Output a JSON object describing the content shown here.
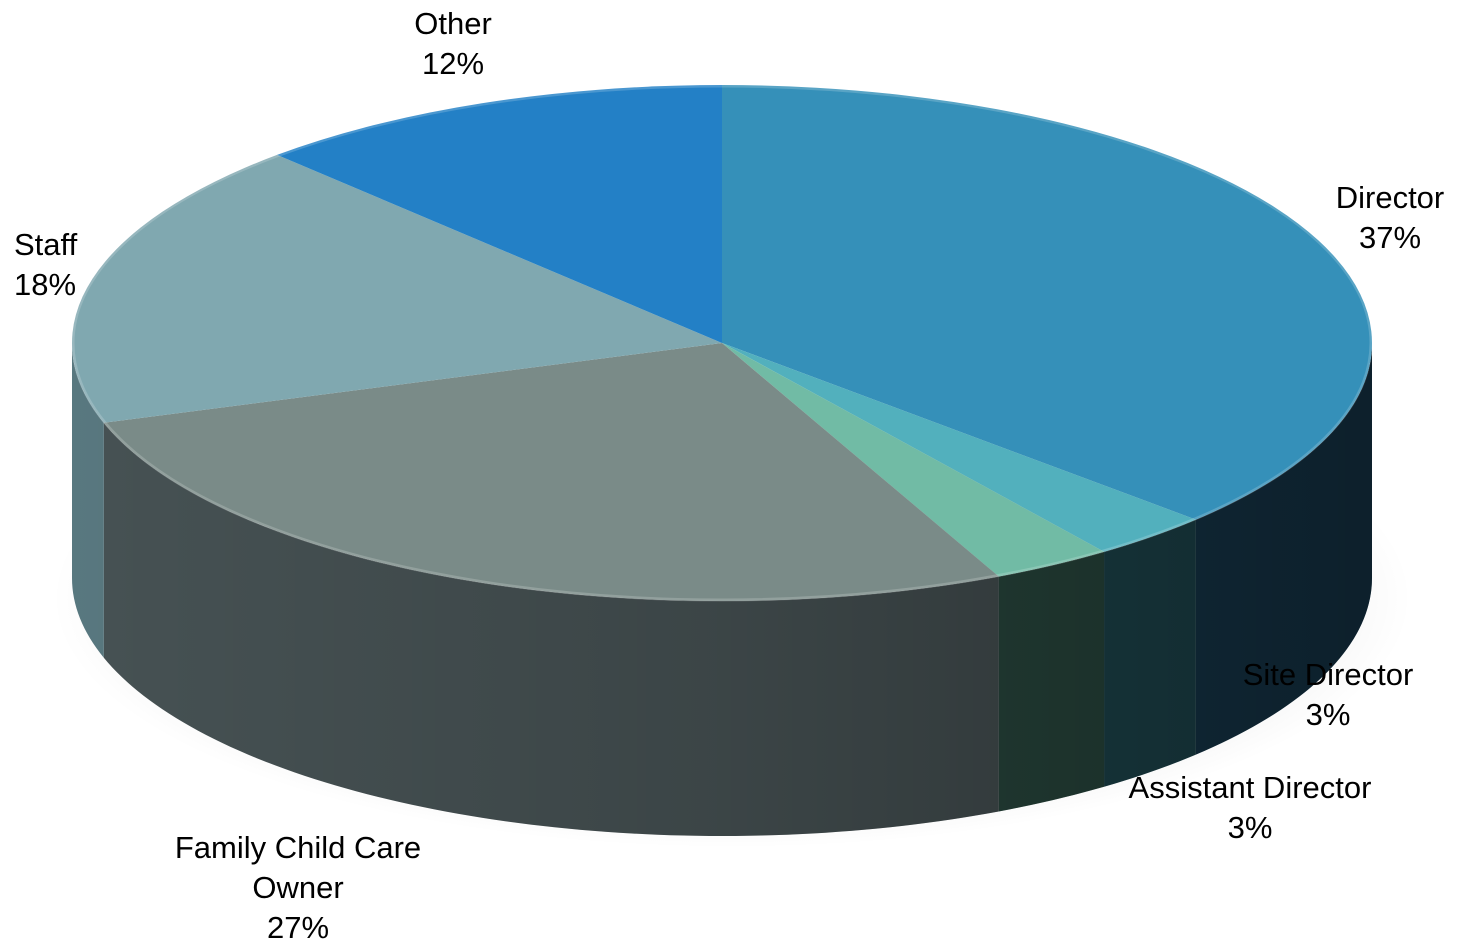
{
  "chart_data": {
    "type": "pie",
    "style": "3d",
    "legend": "none",
    "slices": [
      {
        "name": "Director",
        "value": 37,
        "label": "37%",
        "color": "#3590b9",
        "side_color": "#173a4f"
      },
      {
        "name": "Site Director",
        "value": 3,
        "label": "3%",
        "color": "#52b0bd",
        "side_color": "#1f4a52"
      },
      {
        "name": "Assistant Director",
        "value": 3,
        "label": "3%",
        "color": "#71bba5",
        "side_color": "#2b4c42"
      },
      {
        "name": "Family Child Care Owner",
        "value": 27,
        "label": "27%",
        "color": "#7a8b88",
        "side_color": "#4a5658"
      },
      {
        "name": "Staff",
        "value": 18,
        "label": "18%",
        "color": "#80a8b0",
        "side_color": "#5d7e86"
      },
      {
        "name": "Other",
        "value": 12,
        "label": "12%",
        "color": "#2380c6",
        "side_color": "#184f78"
      }
    ]
  }
}
